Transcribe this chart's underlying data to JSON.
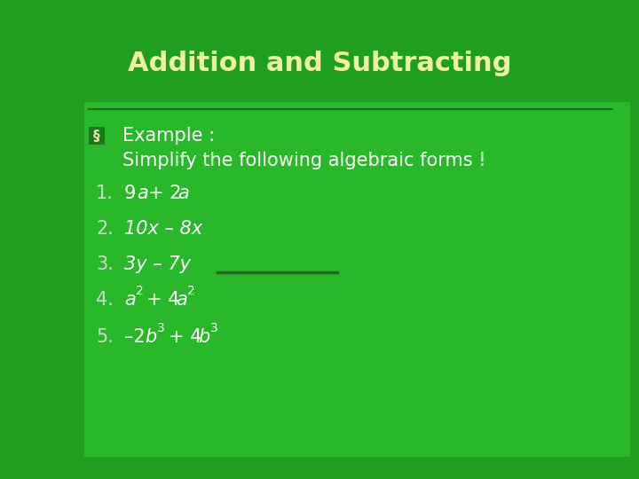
{
  "title": "Addition and Subtracting",
  "title_color": "#f0f0a0",
  "title_fontsize": 22,
  "bg_color": "#1f9e1f",
  "panel_color": "#29b829",
  "text_color": "#ffffff",
  "num_color": "#ccddcc",
  "line_color": "#1a6b1a",
  "sep_color": "#1a6b1a",
  "bullet_color": "#e8e8b0",
  "example_label": "§",
  "example_text1": "Example :",
  "example_text2": "Simplify the following algebraic forms !",
  "items_fs": 15
}
